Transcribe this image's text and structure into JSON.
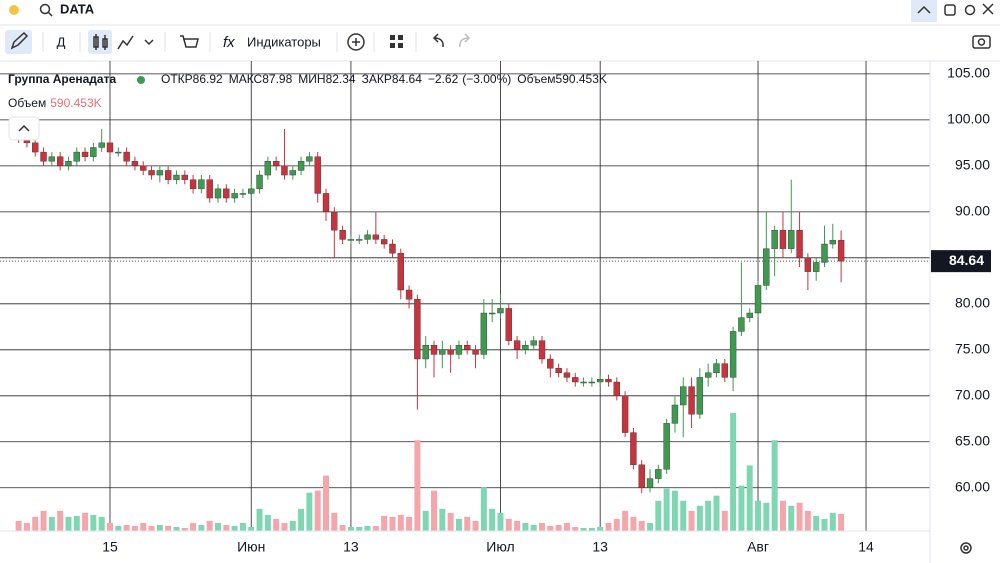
{
  "header": {
    "search": "DATA",
    "interval": "Д",
    "indicators": "Индикаторы"
  },
  "chart_data": {
    "type": "candlestick",
    "title": "Группа Аренадата",
    "ohlc_labels": {
      "open": "ОТКР",
      "high": "МАКС",
      "low": "МИН",
      "close": "ЗАКР",
      "volume": "Объем"
    },
    "change": {
      "value": -2.62,
      "label": "−2.62"
    },
    "change_percent": {
      "value": -3.0,
      "label": "(−3.00%)"
    },
    "last_volume_label": "590.453K",
    "up_color": "#3d9a4f",
    "down_color": "#c8343e",
    "volume_up_color": "#7fd6b3",
    "volume_down_color": "#f5a6ab",
    "open": [
      98.5,
      98,
      97.5,
      96.5,
      95.5,
      96,
      95,
      95.5,
      96.5,
      96,
      97,
      97.5,
      96.5,
      96.5,
      95.5,
      95,
      94.5,
      94,
      94.5,
      93.5,
      94,
      93.5,
      92.5,
      93.5,
      91.5,
      92.5,
      91.5,
      92,
      92,
      92.5,
      94,
      95.5,
      95,
      94,
      94.5,
      95.5,
      96,
      92,
      90,
      88,
      87,
      87,
      87,
      87.5,
      87,
      86.5,
      85.5,
      81.5,
      80.5,
      74,
      75.5,
      74.5,
      75,
      74.5,
      75.5,
      75,
      74.5,
      79,
      79,
      79.5,
      76,
      75,
      75.5,
      76,
      74,
      73,
      72.5,
      72,
      71.5,
      71.5,
      71.5,
      71.8,
      71.5,
      70,
      66,
      62.5,
      60,
      61,
      62,
      67,
      69,
      71,
      68,
      72,
      72.5,
      73.5,
      72,
      77,
      78.5,
      79,
      82,
      86,
      88,
      86,
      88,
      85,
      83.5,
      84.5,
      86.5,
      86.92
    ],
    "high": [
      99,
      98.5,
      98,
      97,
      96.5,
      96.5,
      96,
      97,
      97,
      97.5,
      99,
      98,
      97,
      97,
      96,
      95.5,
      95,
      95,
      95,
      94.5,
      94.5,
      94,
      94,
      94,
      93,
      93,
      92.5,
      92.5,
      93,
      94.5,
      96,
      96,
      99,
      95,
      96,
      96.5,
      96.5,
      92.5,
      90.5,
      88.5,
      87.5,
      87.5,
      88,
      90,
      87.5,
      87,
      86,
      82,
      81,
      76.5,
      76,
      76,
      75.5,
      76,
      76,
      75.5,
      80.5,
      80.5,
      81,
      80,
      76.5,
      76,
      76.5,
      76.5,
      74.5,
      73.5,
      73,
      72.5,
      72,
      72,
      72.3,
      72.3,
      72,
      70.5,
      66.5,
      63,
      62,
      62.5,
      67.5,
      70,
      72,
      72,
      73,
      73.5,
      74,
      74,
      77.5,
      84.5,
      79.5,
      82.5,
      90,
      88.5,
      90,
      93.5,
      90,
      85.5,
      85,
      88.5,
      88.7,
      87.98
    ],
    "low": [
      97.5,
      97,
      96,
      95,
      95,
      94.5,
      94.5,
      95,
      95.5,
      95.5,
      96.5,
      96,
      96,
      95,
      94.5,
      94,
      93.5,
      93.2,
      93,
      93,
      93,
      92,
      92,
      91,
      91,
      91,
      91,
      91.5,
      91.5,
      92,
      93.5,
      94.5,
      93.5,
      93.5,
      94,
      95,
      91,
      89,
      85,
      86.5,
      86.5,
      86.5,
      86.5,
      86.5,
      86,
      85,
      80.5,
      79.5,
      68.5,
      73,
      72,
      73,
      72.5,
      74,
      74.5,
      73,
      74,
      78,
      78.5,
      75.5,
      74,
      74.5,
      75,
      73.5,
      72,
      72,
      71.5,
      71,
      71,
      71,
      71,
      71,
      69.5,
      65.5,
      62,
      59.4,
      59.5,
      60.5,
      61.5,
      66,
      65.5,
      66.5,
      67.5,
      71,
      72,
      71.5,
      70.5,
      76.5,
      78,
      78.5,
      81.5,
      83,
      85,
      85.5,
      84,
      81.5,
      82.5,
      84,
      86,
      82.34
    ],
    "close": [
      98,
      97.5,
      96.5,
      95.5,
      96,
      95,
      95.5,
      96.5,
      96,
      97,
      97.5,
      96.5,
      96.5,
      95.5,
      95,
      94.5,
      94,
      94.5,
      93.5,
      94,
      93.5,
      92.5,
      93.5,
      91.5,
      92.5,
      91.5,
      92,
      92,
      92.5,
      94,
      95.5,
      95,
      94,
      94.5,
      95.5,
      96,
      92,
      90,
      88,
      87,
      87,
      87,
      87.5,
      87,
      86.5,
      85.5,
      81.5,
      80.5,
      74,
      75.5,
      74.5,
      75,
      74.5,
      75.5,
      75,
      74.5,
      79,
      79,
      79.5,
      76,
      75,
      75.5,
      76,
      74,
      73,
      72.5,
      72,
      71.5,
      71.5,
      71.5,
      71.8,
      71.5,
      70,
      66,
      62.5,
      60,
      61,
      62,
      67,
      69,
      71,
      68,
      72,
      72.5,
      73.5,
      72,
      77,
      78.5,
      79,
      82,
      86,
      88,
      86,
      88,
      85,
      83.5,
      84.5,
      86.5,
      86.92,
      84.64
    ],
    "volume": [
      347,
      278,
      486,
      694,
      486,
      694,
      486,
      521,
      625,
      555,
      486,
      278,
      174,
      208,
      174,
      278,
      174,
      208,
      174,
      139,
      104,
      278,
      208,
      347,
      278,
      208,
      174,
      278,
      139,
      764,
      555,
      417,
      278,
      347,
      764,
      1319,
      1388,
      1909,
      625,
      208,
      139,
      139,
      174,
      174,
      521,
      486,
      555,
      486,
      3124,
      694,
      1388,
      764,
      625,
      417,
      486,
      347,
      1492,
      764,
      625,
      417,
      347,
      278,
      208,
      278,
      174,
      208,
      278,
      139,
      104,
      104,
      139,
      278,
      417,
      694,
      486,
      347,
      278,
      1041,
      1458,
      1388,
      1041,
      694,
      868,
      1041,
      1215,
      694,
      4061,
      1562,
      2256,
      1041,
      972,
      3124,
      1041,
      868,
      972,
      694,
      521,
      417,
      625,
      590.453
    ],
    "ylim": [
      55.3,
      106.4
    ],
    "yticks": [
      {
        "value": 60,
        "label": "60.00"
      },
      {
        "value": 65,
        "label": "65.00"
      },
      {
        "value": 70,
        "label": "70.00"
      },
      {
        "value": 75,
        "label": "75.00"
      },
      {
        "value": 80,
        "label": "80.00"
      },
      {
        "value": 85,
        "label": "85.00"
      },
      {
        "value": 90,
        "label": "90.00"
      },
      {
        "value": 95,
        "label": "95.00"
      },
      {
        "value": 100,
        "label": "100.00"
      },
      {
        "value": 105,
        "label": "105.00"
      }
    ],
    "xlim": [
      -2.24,
      109.7
    ],
    "xticks": [
      {
        "value": 11,
        "label": "15"
      },
      {
        "value": 28,
        "label": "Июн"
      },
      {
        "value": 40,
        "label": "13"
      },
      {
        "value": 58,
        "label": "Июл"
      },
      {
        "value": 70,
        "label": "13"
      },
      {
        "value": 89,
        "label": "Авг"
      },
      {
        "value": 102,
        "label": "14"
      }
    ],
    "grid": true
  }
}
